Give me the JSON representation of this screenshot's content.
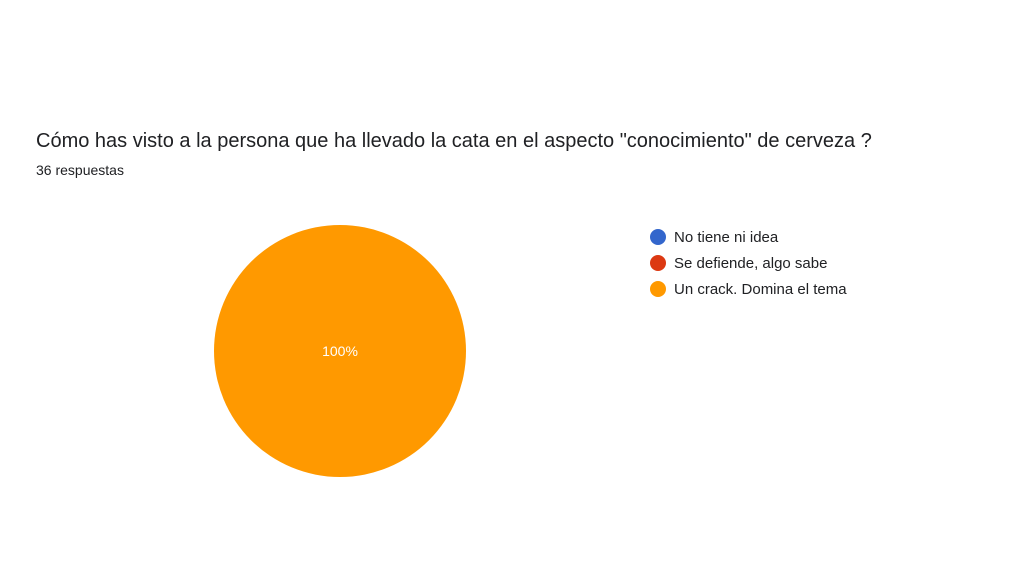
{
  "question": {
    "title": "Cómo has visto a la persona que ha llevado la cata en el aspecto \"conocimiento\" de cerveza ?",
    "responses": "36 respuestas"
  },
  "chart_data": {
    "type": "pie",
    "title": "Cómo has visto a la persona que ha llevado la cata en el aspecto \"conocimiento\" de cerveza ?",
    "total_responses": 36,
    "categories": [
      "No tiene ni idea",
      "Se defiende, algo sabe",
      "Un crack. Domina el tema"
    ],
    "values": [
      0,
      0,
      100
    ],
    "value_labels": [
      "",
      "",
      "100%"
    ],
    "colors": [
      "#3366cc",
      "#dc3912",
      "#ff9900"
    ],
    "legend_position": "right"
  }
}
